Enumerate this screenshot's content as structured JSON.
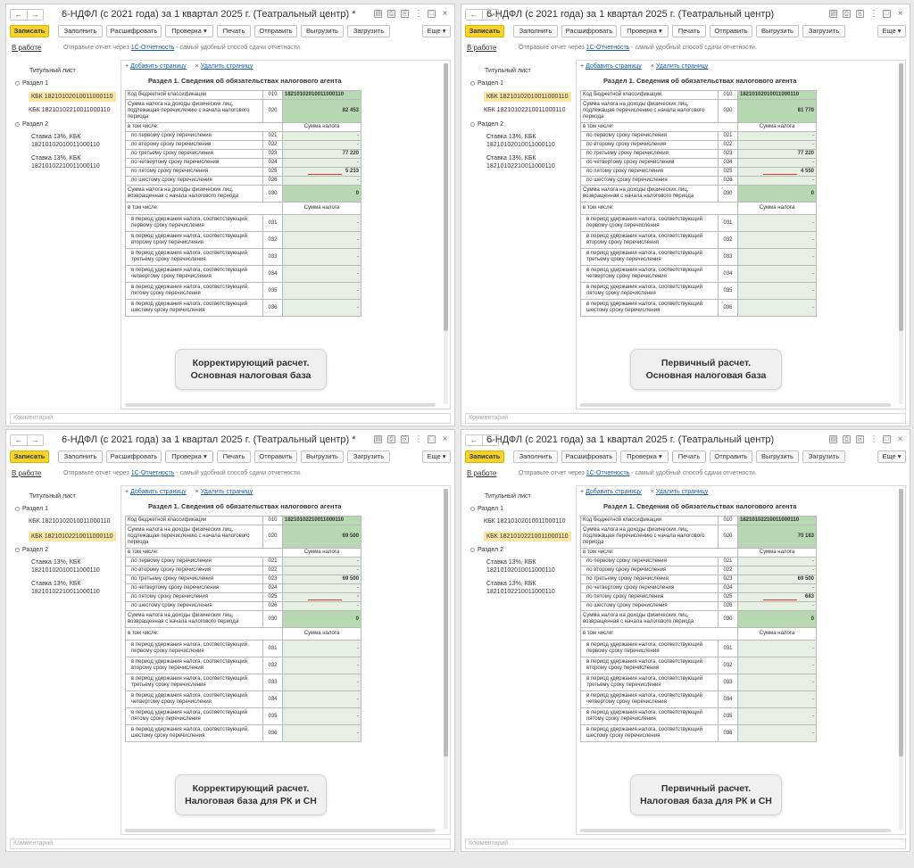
{
  "common": {
    "nav_back": "←",
    "nav_forward": "→",
    "title_icons": [
      "doc-icon",
      "print-icon",
      "attach-icon",
      "more-icon",
      "maximize-icon",
      "close-icon"
    ],
    "toolbar": {
      "save": "Записать",
      "fill": "Заполнить",
      "decode": "Расшифровать",
      "check": "Проверка ▾",
      "print": "Печать",
      "send": "Отправить",
      "export": "Выгрузить",
      "import": "Загрузить",
      "more": "Еще ▾"
    },
    "status": "В работе",
    "info_before": "Отправьте отчет через ",
    "info_link": "1С-Отчетность",
    "info_after": " - самый удобный способ сдачи отчетности.",
    "tree": {
      "title_sheet": "Титульный лист",
      "section1": "Раздел 1",
      "kbk1": "КБК 18210102010011000110",
      "kbk2": "КБК 18210102210011000110",
      "section2": "Раздел 2",
      "rate1_line1": "Ставка 13%, КБК",
      "rate1_line2": "18210102010011000110",
      "rate2_line1": "Ставка 13%, КБК",
      "rate2_line2": "18210102210011000110"
    },
    "add_page": "Добавить страницу",
    "delete_page": "Удалить страницу",
    "section_title": "Раздел 1. Сведения об обязательствах налогового агента",
    "rows": {
      "kbk_label": "Код бюджетной классификации",
      "r020_label": "Сумма налога на доходы физических лиц, подлежащая перечислению с начала налогового периода",
      "incl": "в том числе:",
      "tax_sum": "Сумма налога",
      "r021": "по первому сроку перечисления",
      "r022": "по второму сроку перечисления",
      "r023": "по третьему сроку перечисления",
      "r024": "по четвертому сроку перечисления",
      "r025": "по пятому сроку перечисления",
      "r026": "по шестому сроку перечисления",
      "r030_label": "Сумма налога на доходы физических лиц, возвращенная с начала налогового периода",
      "r031": "в период удержания налога, соответствующий первому сроку перечисления",
      "r032": "в период удержания налога, соответствующий второму сроку перечисления",
      "r033": "в период удержания налога, соответствующий третьему сроку перечисления",
      "r034": "в период удержания налога, соответствующий четвертому сроку перечисления",
      "r035": "в период удержания налога, соответствующий пятому сроку перечисления",
      "r036": "в период удержания налога, соответствующий шестому сроку перечисления"
    },
    "dash": "-",
    "zero": "0",
    "comment_placeholder": "Комментарий"
  },
  "windows": [
    {
      "title": "6-НДФЛ (с 2021 года) за 1 квартал 2025 г. (Театральный центр) *",
      "selected_kbk": 1,
      "kbk_value": "18210102010011000110",
      "v020": "82 453",
      "v023": "77 220",
      "v025": "5 233",
      "caption_line1": "Корректирующий расчет.",
      "caption_line2": "Основная налоговая база"
    },
    {
      "title": "6-НДФЛ (с 2021 года) за 1 квартал 2025 г. (Театральный центр)",
      "selected_kbk": 1,
      "kbk_value": "18210102010011000110",
      "v020": "81 770",
      "v023": "77 220",
      "v025": "4 550",
      "caption_line1": "Первичный расчет.",
      "caption_line2": "Основная налоговая база"
    },
    {
      "title": "6-НДФЛ (с 2021 года) за 1 квартал 2025 г. (Театральный центр) *",
      "selected_kbk": 2,
      "kbk_value": "18210102210011000110",
      "v020": "69 500",
      "v023": "69 500",
      "v025": "-",
      "caption_line1": "Корректирующий расчет.",
      "caption_line2": "Налоговая база для РК и СН"
    },
    {
      "title": "6-НДФЛ (с 2021 года) за 1 квартал 2025 г. (Театральный центр)",
      "selected_kbk": 2,
      "kbk_value": "18210102210011000110",
      "v020": "70 183",
      "v023": "69 500",
      "v025": "683",
      "caption_line1": "Первичный расчет.",
      "caption_line2": "Налоговая база для РК и СН"
    }
  ]
}
